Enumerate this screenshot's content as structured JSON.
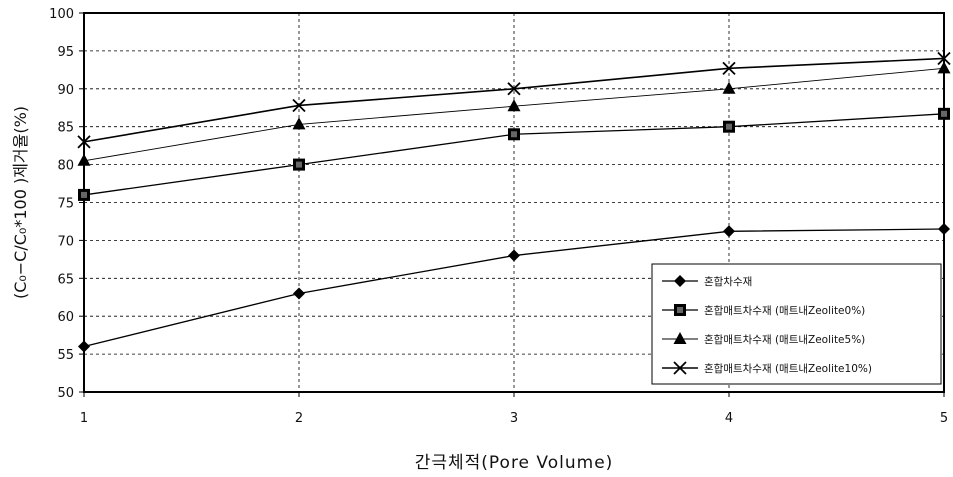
{
  "chart_data": {
    "type": "line",
    "xlabel": "간극체적(Pore Volume)",
    "ylabel": "(C₀−C/C₀*100 )제거율(%)",
    "x": [
      1,
      2,
      3,
      4,
      5
    ],
    "xlim": [
      1,
      5
    ],
    "ylim": [
      50,
      100
    ],
    "yticks": [
      50,
      55,
      60,
      65,
      70,
      75,
      80,
      85,
      90,
      95,
      100
    ],
    "xticks": [
      1,
      2,
      3,
      4,
      5
    ],
    "grid": true,
    "legend_position": "lower-right",
    "series": [
      {
        "name": "혼합차수재",
        "marker": "diamond",
        "values": [
          56,
          63,
          68,
          71.2,
          71.5
        ]
      },
      {
        "name": "혼합매트차수재 (매트내Zeolite0%)",
        "marker": "square",
        "values": [
          76,
          80,
          84,
          85,
          86.7
        ]
      },
      {
        "name": "혼합매트차수재 (매트내Zeolite5%)",
        "marker": "triangle",
        "values": [
          80.5,
          85.3,
          87.7,
          90,
          92.7
        ]
      },
      {
        "name": "혼합매트차수재 (매트내Zeolite10%)",
        "marker": "x",
        "values": [
          83,
          87.8,
          90,
          92.7,
          94
        ]
      }
    ]
  }
}
